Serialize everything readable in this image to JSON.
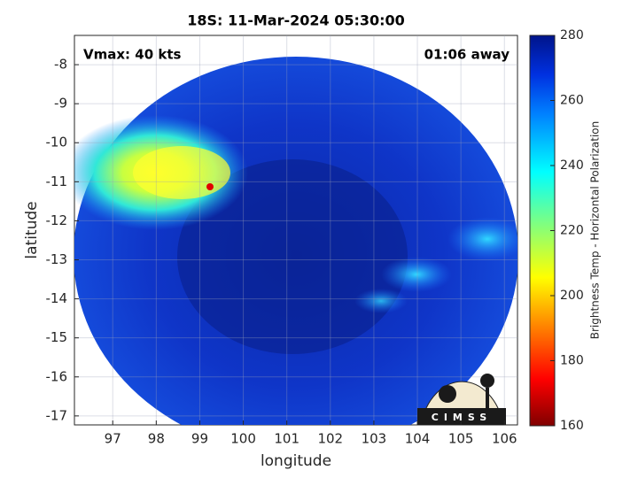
{
  "chart_data": {
    "type": "image",
    "title": "18S: 11-Mar-2024 05:30:00",
    "xlabel": "longitude",
    "ylabel": "latitude",
    "xlim": [
      96.12,
      106.3
    ],
    "ylim": [
      -17.23,
      -7.25
    ],
    "xticks": [
      97,
      98,
      99,
      100,
      101,
      102,
      103,
      104,
      105,
      106
    ],
    "yticks": [
      -17,
      -16,
      -15,
      -14,
      -13,
      -12,
      -11,
      -10,
      -9,
      -8
    ],
    "grid": true,
    "annotations": [
      "Vmax: 40 kts",
      "01:06 away"
    ],
    "logo": "CIMSS",
    "colorbar": {
      "label": "Brightness Temp - Horizontal Polarization",
      "clim": [
        160,
        280
      ],
      "ticks": [
        160,
        180,
        200,
        220,
        240,
        260,
        280
      ]
    }
  }
}
